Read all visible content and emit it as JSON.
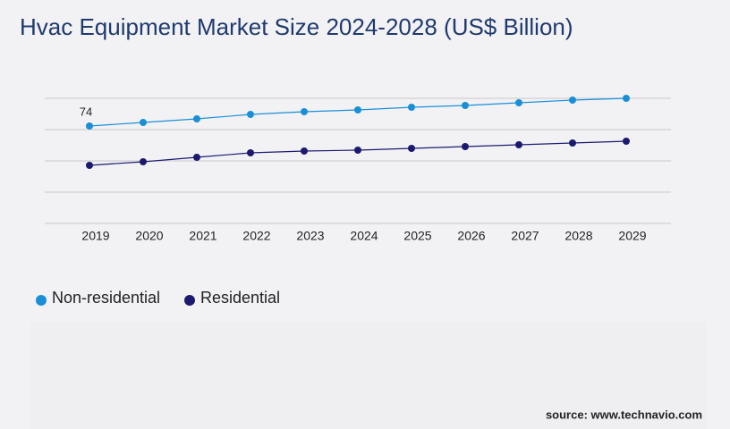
{
  "chart_data": {
    "type": "line",
    "title": "Hvac Equipment Market Size 2024-2028 (US$ Billion)",
    "categories": [
      "2019",
      "2020",
      "2021",
      "2022",
      "2023",
      "2024",
      "2025",
      "2026",
      "2027",
      "2028",
      "2029"
    ],
    "series": [
      {
        "name": "Non-residential",
        "color": "#1a8fd6",
        "values": [
          74,
          78,
          82,
          87,
          90,
          92,
          95,
          97,
          100,
          103,
          105
        ]
      },
      {
        "name": "Residential",
        "color": "#1c1a6e",
        "values": [
          30,
          34,
          39,
          44,
          46,
          47,
          49,
          51,
          53,
          55,
          57
        ]
      }
    ],
    "ylim": [
      -35,
      105
    ],
    "ygrid": [
      -35,
      0,
      35,
      70,
      105
    ],
    "grid": true,
    "source": "source: www.technavio.com"
  }
}
